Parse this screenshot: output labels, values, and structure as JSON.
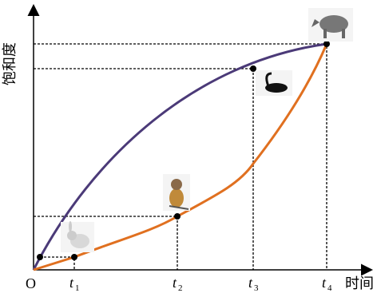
{
  "axes": {
    "y_label": "饱和度",
    "x_label": "时间",
    "origin": "O"
  },
  "time_marks": [
    {
      "var": "t",
      "sub": "1"
    },
    {
      "var": "t",
      "sub": "2"
    },
    {
      "var": "t",
      "sub": "3"
    },
    {
      "var": "t",
      "sub": "4"
    }
  ]
}
